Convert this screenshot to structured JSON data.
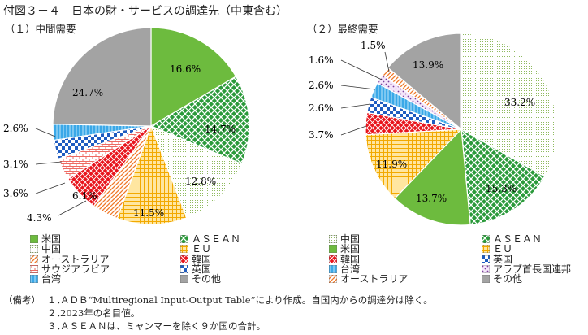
{
  "title": "付図３－４　日本の財・サービスの調達先（中東含む）",
  "chart_data": [
    {
      "type": "pie",
      "title": "（１）中間需要",
      "start": "12 o'clock",
      "direction": "clockwise",
      "slices": [
        {
          "key": "asean",
          "label": "ＡＳＥＡＮ",
          "value": 14.7,
          "value_label": "14.7%"
        },
        {
          "key": "other",
          "label": "その他",
          "value": 24.7,
          "value_label": "24.7%"
        },
        {
          "key": "taiwan",
          "label": "台湾",
          "value": 2.6,
          "value_label": "2.6%"
        },
        {
          "key": "korea",
          "label": "韓国",
          "value": 6.1,
          "value_label": "6.1%"
        },
        {
          "key": "eu",
          "label": "ＥＵ",
          "value": 11.5,
          "value_label": "11.5%"
        },
        {
          "key": "australia",
          "label": "オーストラリア",
          "value": 4.3,
          "value_label": "4.3%"
        },
        {
          "key": "china",
          "label": "中国",
          "value": 12.8,
          "value_label": "12.8%"
        },
        {
          "key": "saudi",
          "label": "サウジアラビア",
          "value": 3.6,
          "value_label": "3.6%"
        },
        {
          "key": "us",
          "label": "米国",
          "value": 16.6,
          "value_label": "16.6%"
        },
        {
          "key": "uk",
          "label": "英国",
          "value": 3.1,
          "value_label": "3.1%"
        }
      ],
      "legend": [
        {
          "key": "us",
          "label": "米国"
        },
        {
          "key": "asean",
          "label": "ＡＳＥＡＮ"
        },
        {
          "key": "china",
          "label": "中国"
        },
        {
          "key": "eu",
          "label": "ＥＵ"
        },
        {
          "key": "australia",
          "label": "オーストラリア"
        },
        {
          "key": "korea",
          "label": "韓国"
        },
        {
          "key": "saudi",
          "label": "サウジアラビア"
        },
        {
          "key": "uk",
          "label": "英国"
        },
        {
          "key": "taiwan",
          "label": "台湾"
        },
        {
          "key": "other",
          "label": "その他"
        }
      ]
    },
    {
      "type": "pie",
      "title": "（２）最終需要",
      "start": "12 o'clock",
      "direction": "clockwise",
      "slices": [
        {
          "key": "china",
          "label": "中国",
          "value": 33.2,
          "value_label": "33.2%"
        },
        {
          "key": "asean",
          "label": "ＡＳＥＡＮ",
          "value": 15.3,
          "value_label": "15.3%"
        },
        {
          "key": "us",
          "label": "米国",
          "value": 13.7,
          "value_label": "13.7%"
        },
        {
          "key": "eu",
          "label": "ＥＵ",
          "value": 11.9,
          "value_label": "11.9%"
        },
        {
          "key": "korea",
          "label": "韓国",
          "value": 3.7,
          "value_label": "3.7%"
        },
        {
          "key": "uk",
          "label": "英国",
          "value": 2.6,
          "value_label": "2.6%"
        },
        {
          "key": "taiwan",
          "label": "台湾",
          "value": 2.6,
          "value_label": "2.6%"
        },
        {
          "key": "uae",
          "label": "アラブ首長国連邦",
          "value": 1.6,
          "value_label": "1.6%"
        },
        {
          "key": "australia",
          "label": "オーストラリア",
          "value": 1.5,
          "value_label": "1.5%"
        },
        {
          "key": "other",
          "label": "その他",
          "value": 13.9,
          "value_label": "13.9%"
        }
      ],
      "legend": [
        {
          "key": "china",
          "label": "中国"
        },
        {
          "key": "asean",
          "label": "ＡＳＥＡＮ"
        },
        {
          "key": "us",
          "label": "米国"
        },
        {
          "key": "eu",
          "label": "ＥＵ"
        },
        {
          "key": "korea",
          "label": "韓国"
        },
        {
          "key": "uk",
          "label": "英国"
        },
        {
          "key": "taiwan",
          "label": "台湾"
        },
        {
          "key": "uae",
          "label": "アラブ首長国連邦"
        },
        {
          "key": "australia",
          "label": "オーストラリア"
        },
        {
          "key": "other",
          "label": "その他"
        }
      ]
    }
  ],
  "notes": {
    "head": "（備考）",
    "items": [
      {
        "num": "１．",
        "text": "ＡＤＢ“Multiregional Input-Output Table”により作成。自国内からの調達分は除く。"
      },
      {
        "num": "２．",
        "text": "2023年の名目値。"
      },
      {
        "num": "３．",
        "text": "ＡＳＥＡＮは、ミャンマーを除く９か国の合計。"
      }
    ]
  }
}
